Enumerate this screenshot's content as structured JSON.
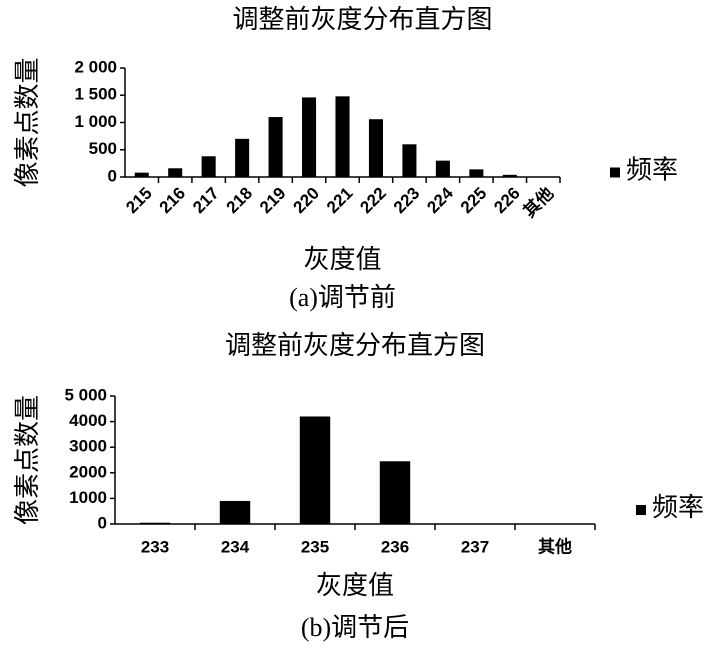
{
  "chart_data": [
    {
      "type": "bar",
      "title": "调整前灰度分布直方图",
      "x_label": "灰度值",
      "y_label": "像素点数量",
      "caption": "(a)调节前",
      "categories": [
        "215",
        "216",
        "217",
        "218",
        "219",
        "220",
        "221",
        "222",
        "223",
        "224",
        "225",
        "226",
        "其他"
      ],
      "series": [
        {
          "name": "频率",
          "color": "#000000",
          "values": [
            80,
            160,
            380,
            700,
            1100,
            1460,
            1480,
            1060,
            600,
            300,
            140,
            40,
            0
          ]
        }
      ],
      "ylim": [
        0,
        2000
      ],
      "yticks": [
        0,
        500,
        {
          "value": 1000,
          "label": "1 000"
        },
        {
          "value": 1500,
          "label": "1 500"
        },
        {
          "value": 2000,
          "label": "2 000"
        }
      ],
      "grid": false,
      "legend": "right"
    },
    {
      "type": "bar",
      "title": "调整前灰度分布直方图",
      "x_label": "灰度值",
      "y_label": "像素点数量",
      "caption": "(b)调节后",
      "categories": [
        "233",
        "234",
        "235",
        "236",
        "237",
        "其他"
      ],
      "series": [
        {
          "name": "频率",
          "color": "#000000",
          "values": [
            50,
            900,
            4200,
            2450,
            0,
            0
          ]
        }
      ],
      "ylim": [
        0,
        5000
      ],
      "yticks": [
        0,
        {
          "value": 1000,
          "label": "1000"
        },
        {
          "value": 2000,
          "label": "2000"
        },
        {
          "value": 3000,
          "label": "3000"
        },
        {
          "value": 4000,
          "label": "4000"
        },
        {
          "value": 5000,
          "label": "5 000"
        }
      ],
      "grid": false,
      "legend": "right"
    }
  ]
}
